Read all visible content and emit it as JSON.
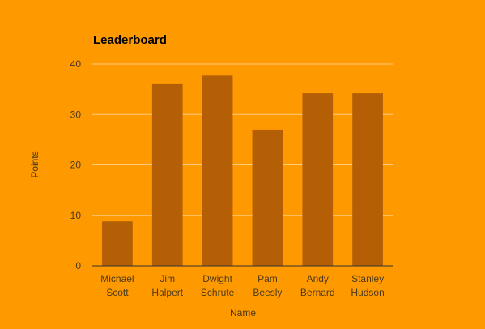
{
  "chart_data": {
    "type": "bar",
    "title": "Leaderboard",
    "xlabel": "Name",
    "ylabel": "Points",
    "categories": [
      "Michael Scott",
      "Jim Halpert",
      "Dwight Schrute",
      "Pam Beesly",
      "Andy Bernard",
      "Stanley Hudson"
    ],
    "values": [
      8.8,
      36,
      37.7,
      27,
      34.2,
      34.2
    ],
    "ylim": [
      0,
      40
    ],
    "yticks": [
      0,
      10,
      20,
      30,
      40
    ],
    "grid": true,
    "legend": "none",
    "colors": {
      "background": "#ff9900",
      "bar": "#b45f06",
      "grid": "#ffcc80",
      "baseline": "#333333"
    }
  }
}
